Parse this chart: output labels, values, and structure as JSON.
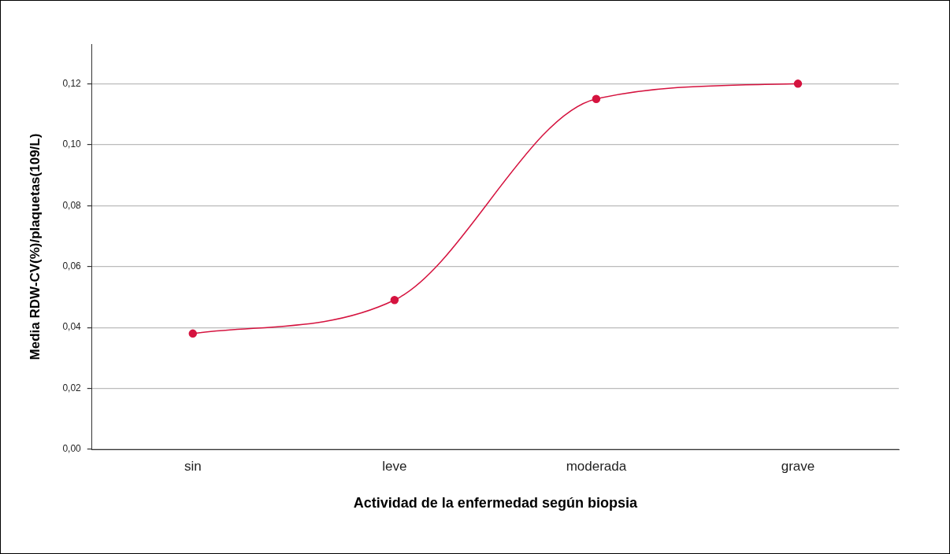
{
  "chart_data": {
    "type": "line",
    "xlabel": "Actividad de la enfermedad según biopsia",
    "ylabel": "Media RDW-CV(%)/plaquetas(109/L)",
    "categories": [
      "sin",
      "leve",
      "moderada",
      "grave"
    ],
    "series": [
      {
        "color": "#d5133f",
        "values": [
          0.038,
          0.049,
          0.115,
          0.12
        ]
      }
    ],
    "ylim": [
      0,
      0.133
    ],
    "yticks": [
      {
        "value": 0,
        "label": "0,00"
      },
      {
        "value": 0.02,
        "label": "0,02"
      },
      {
        "value": 0.04,
        "label": "0,04"
      },
      {
        "value": 0.06,
        "label": "0,06"
      },
      {
        "value": 0.08,
        "label": "0,08"
      },
      {
        "value": 0.1,
        "label": "0,10"
      },
      {
        "value": 0.12,
        "label": "0,12"
      }
    ],
    "grid": "y",
    "legend": false,
    "marker": "circle",
    "line_style": "solid"
  }
}
